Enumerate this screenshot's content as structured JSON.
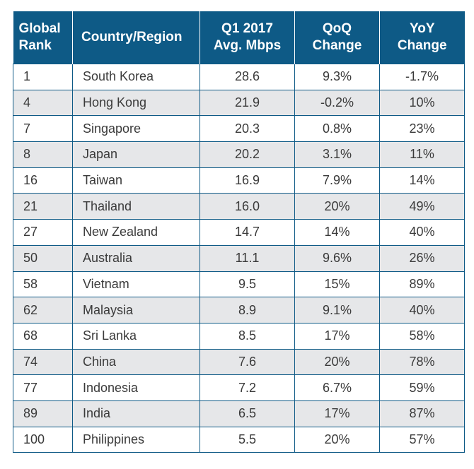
{
  "table": {
    "headers": {
      "rank": "Global\nRank",
      "country": "Country/Region",
      "speed": "Q1 2017\nAvg. Mbps",
      "qoq": "QoQ\nChange",
      "yoy": "YoY\nChange"
    },
    "rows": [
      {
        "rank": "1",
        "country": "South Korea",
        "speed": "28.6",
        "qoq": "9.3%",
        "yoy": "-1.7%"
      },
      {
        "rank": "4",
        "country": "Hong Kong",
        "speed": "21.9",
        "qoq": "-0.2%",
        "yoy": "10%"
      },
      {
        "rank": "7",
        "country": "Singapore",
        "speed": "20.3",
        "qoq": "0.8%",
        "yoy": "23%"
      },
      {
        "rank": "8",
        "country": "Japan",
        "speed": "20.2",
        "qoq": "3.1%",
        "yoy": "11%"
      },
      {
        "rank": "16",
        "country": "Taiwan",
        "speed": "16.9",
        "qoq": "7.9%",
        "yoy": "14%"
      },
      {
        "rank": "21",
        "country": "Thailand",
        "speed": "16.0",
        "qoq": "20%",
        "yoy": "49%"
      },
      {
        "rank": "27",
        "country": "New Zealand",
        "speed": "14.7",
        "qoq": "14%",
        "yoy": "40%"
      },
      {
        "rank": "50",
        "country": "Australia",
        "speed": "11.1",
        "qoq": "9.6%",
        "yoy": "26%"
      },
      {
        "rank": "58",
        "country": "Vietnam",
        "speed": "9.5",
        "qoq": "15%",
        "yoy": "89%"
      },
      {
        "rank": "62",
        "country": "Malaysia",
        "speed": "8.9",
        "qoq": "9.1%",
        "yoy": "40%"
      },
      {
        "rank": "68",
        "country": "Sri Lanka",
        "speed": "8.5",
        "qoq": "17%",
        "yoy": "58%"
      },
      {
        "rank": "74",
        "country": "China",
        "speed": "7.6",
        "qoq": "20%",
        "yoy": "78%"
      },
      {
        "rank": "77",
        "country": "Indonesia",
        "speed": "7.2",
        "qoq": "6.7%",
        "yoy": "59%"
      },
      {
        "rank": "89",
        "country": "India",
        "speed": "6.5",
        "qoq": "17%",
        "yoy": "87%"
      },
      {
        "rank": "100",
        "country": "Philippines",
        "speed": "5.5",
        "qoq": "20%",
        "yoy": "57%"
      }
    ]
  },
  "colors": {
    "header_bg": "#0e5a86",
    "row_alt_bg": "#e6e7e9"
  }
}
